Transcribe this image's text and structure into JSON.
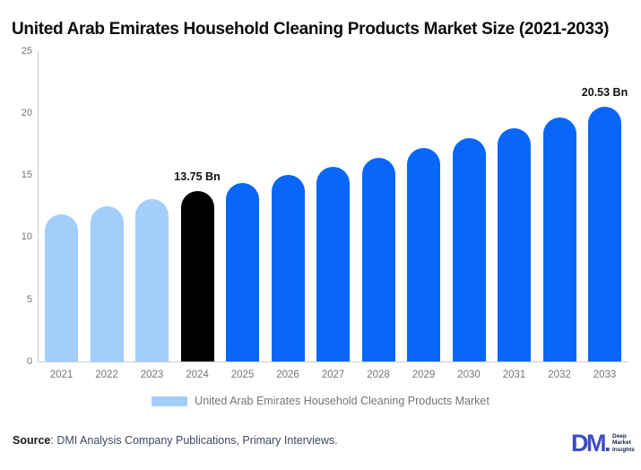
{
  "title": "United Arab Emirates Household Cleaning Products Market Size (2021-2033)",
  "legend": {
    "label": "United Arab Emirates Household Cleaning Products Market",
    "swatch_color": "#A3CDFA"
  },
  "source": {
    "label": "Source",
    "rest": ": DMI Analysis Company Publications, Primary Interviews."
  },
  "logo": {
    "mark": "DM.",
    "line1": "Deep",
    "line2": "Market",
    "line3": "Insights"
  },
  "chart_data": {
    "type": "bar",
    "title": "United Arab Emirates Household Cleaning Products Market Size (2021-2033)",
    "xlabel": "",
    "ylabel": "",
    "unit": "Bn",
    "ylim": [
      0,
      25
    ],
    "yticks": [
      0,
      5,
      10,
      15,
      20,
      25
    ],
    "grid": false,
    "legend_position": "bottom",
    "categories": [
      "2021",
      "2022",
      "2023",
      "2024",
      "2025",
      "2026",
      "2027",
      "2028",
      "2029",
      "2030",
      "2031",
      "2032",
      "2033"
    ],
    "values": [
      11.9,
      12.5,
      13.1,
      13.75,
      14.38,
      15.03,
      15.72,
      16.43,
      17.18,
      17.97,
      18.78,
      19.64,
      20.53
    ],
    "colors": {
      "history": "#A3CDFA",
      "base_year": "#000000",
      "forecast": "#0867FA"
    },
    "color_keys": [
      "history",
      "history",
      "history",
      "base_year",
      "forecast",
      "forecast",
      "forecast",
      "forecast",
      "forecast",
      "forecast",
      "forecast",
      "forecast",
      "forecast"
    ],
    "annotations": [
      {
        "year": "2024",
        "label": "13.75 Bn"
      },
      {
        "year": "2033",
        "label": "20.53 Bn"
      }
    ]
  }
}
